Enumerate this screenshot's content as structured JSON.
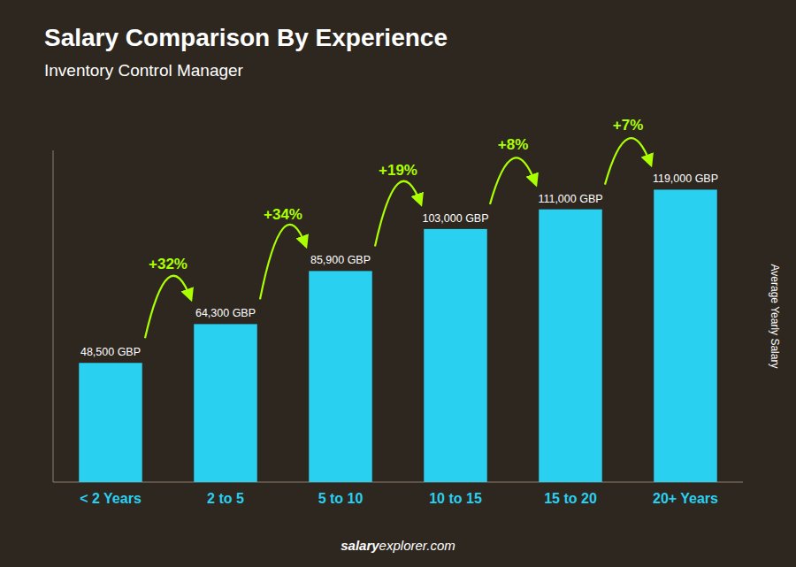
{
  "chart_data": {
    "type": "bar",
    "title": "Salary Comparison By Experience",
    "subtitle": "Inventory Control Manager",
    "categories": [
      "< 2 Years",
      "2 to 5",
      "5 to 10",
      "10 to 15",
      "15 to 20",
      "20+ Years"
    ],
    "values": [
      48500,
      64300,
      85900,
      103000,
      111000,
      119000
    ],
    "value_labels": [
      "48,500 GBP",
      "64,300 GBP",
      "85,900 GBP",
      "103,000 GBP",
      "111,000 GBP",
      "119,000 GBP"
    ],
    "data_labels": true,
    "annotations": [
      "+32%",
      "+34%",
      "+19%",
      "+8%",
      "+7%"
    ],
    "watermark": [
      "salary",
      "explorer.com"
    ],
    "ylabel": "Average Yearly Salary",
    "ylim": [
      0,
      135000
    ],
    "tick_labels": "x",
    "color": "#29d0f0"
  }
}
